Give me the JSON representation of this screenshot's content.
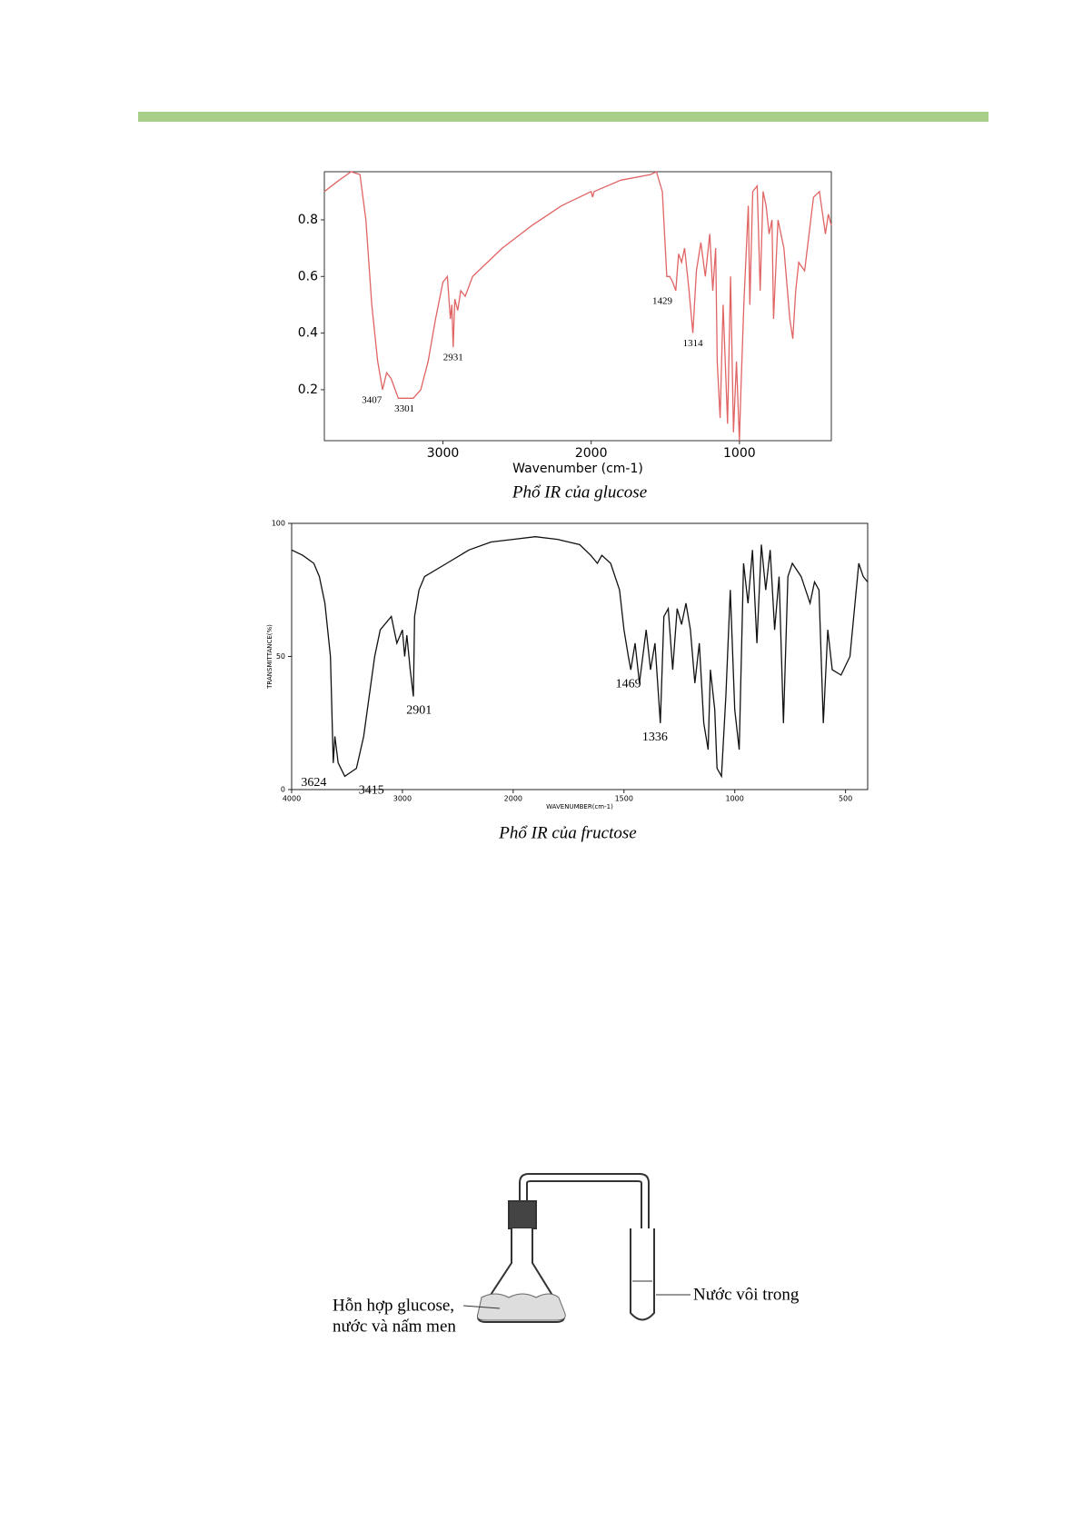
{
  "chart_data": [
    {
      "type": "line",
      "caption": "Phổ IR của glucose",
      "xlabel": "Wavenumber (cm-1)",
      "xlim": [
        3800,
        380
      ],
      "ylim": [
        0.02,
        0.97
      ],
      "xticks": [
        3000,
        2000,
        1000
      ],
      "yticks": [
        0.2,
        0.4,
        0.6,
        0.8
      ],
      "x": [
        3800,
        3700,
        3620,
        3560,
        3520,
        3480,
        3440,
        3407,
        3380,
        3350,
        3301,
        3200,
        3150,
        3100,
        3050,
        3000,
        2970,
        2950,
        2940,
        2931,
        2920,
        2900,
        2880,
        2850,
        2800,
        2600,
        2400,
        2200,
        2000,
        1990,
        1980,
        1800,
        1600,
        1560,
        1520,
        1490,
        1470,
        1450,
        1429,
        1410,
        1390,
        1370,
        1340,
        1314,
        1290,
        1260,
        1230,
        1200,
        1180,
        1160,
        1150,
        1130,
        1110,
        1080,
        1060,
        1040,
        1020,
        1000,
        990,
        970,
        940,
        930,
        910,
        880,
        860,
        840,
        820,
        800,
        780,
        770,
        740,
        700,
        660,
        640,
        620,
        600,
        560,
        500,
        460,
        420,
        400,
        380
      ],
      "series": [
        {
          "name": "glucose",
          "color": "#e06464",
          "values": [
            0.9,
            0.94,
            0.97,
            0.96,
            0.8,
            0.5,
            0.3,
            0.2,
            0.26,
            0.24,
            0.17,
            0.17,
            0.2,
            0.3,
            0.45,
            0.58,
            0.6,
            0.45,
            0.5,
            0.35,
            0.52,
            0.48,
            0.55,
            0.53,
            0.6,
            0.7,
            0.78,
            0.85,
            0.9,
            0.88,
            0.9,
            0.94,
            0.96,
            0.97,
            0.9,
            0.6,
            0.6,
            0.58,
            0.55,
            0.68,
            0.65,
            0.7,
            0.55,
            0.4,
            0.62,
            0.72,
            0.6,
            0.75,
            0.55,
            0.7,
            0.3,
            0.1,
            0.5,
            0.08,
            0.6,
            0.05,
            0.3,
            0.02,
            0.2,
            0.5,
            0.85,
            0.5,
            0.9,
            0.92,
            0.55,
            0.9,
            0.85,
            0.75,
            0.8,
            0.45,
            0.8,
            0.7,
            0.45,
            0.38,
            0.55,
            0.65,
            0.62,
            0.88,
            0.9,
            0.75,
            0.82,
            0.78
          ]
        }
      ],
      "annotations": [
        {
          "text": "3407",
          "x": 3480,
          "y": 0.2
        },
        {
          "text": "3301",
          "x": 3260,
          "y": 0.17
        },
        {
          "text": "2931",
          "x": 2931,
          "y": 0.35
        },
        {
          "text": "1429",
          "x": 1520,
          "y": 0.55
        },
        {
          "text": "1314",
          "x": 1314,
          "y": 0.4
        }
      ]
    },
    {
      "type": "line",
      "caption": "Phổ IR của fructose",
      "xlabel": "WAVENUMBER(cm-1)",
      "ylabel": "TRANSMITTANCE(%)",
      "xlim": [
        4000,
        400
      ],
      "x_scale_break": 2000,
      "x_scale_expand": 2,
      "ylim": [
        0,
        100
      ],
      "xticks": [
        4000,
        3000,
        2000,
        1500,
        1000,
        500
      ],
      "yticks": [
        0,
        50,
        100
      ],
      "x": [
        4000,
        3900,
        3800,
        3750,
        3700,
        3650,
        3624,
        3610,
        3580,
        3520,
        3415,
        3350,
        3300,
        3250,
        3200,
        3100,
        3050,
        3000,
        2980,
        2960,
        2930,
        2901,
        2890,
        2850,
        2800,
        2600,
        2400,
        2200,
        2000,
        1900,
        1800,
        1700,
        1650,
        1620,
        1600,
        1560,
        1520,
        1500,
        1480,
        1469,
        1450,
        1430,
        1400,
        1380,
        1360,
        1336,
        1320,
        1300,
        1280,
        1260,
        1240,
        1220,
        1200,
        1180,
        1160,
        1140,
        1120,
        1110,
        1090,
        1080,
        1060,
        1040,
        1020,
        1000,
        980,
        960,
        940,
        920,
        900,
        880,
        860,
        840,
        820,
        800,
        780,
        760,
        740,
        700,
        660,
        640,
        620,
        600,
        580,
        560,
        520,
        480,
        440,
        420,
        400
      ],
      "series": [
        {
          "name": "fructose",
          "color": "#111111",
          "values": [
            90,
            88,
            85,
            80,
            70,
            50,
            10,
            20,
            10,
            5,
            8,
            20,
            35,
            50,
            60,
            65,
            55,
            60,
            50,
            58,
            45,
            35,
            65,
            75,
            80,
            85,
            90,
            93,
            94,
            95,
            94,
            92,
            88,
            85,
            88,
            85,
            75,
            60,
            50,
            45,
            55,
            40,
            60,
            45,
            55,
            25,
            65,
            68,
            45,
            68,
            62,
            70,
            60,
            40,
            55,
            25,
            15,
            45,
            30,
            8,
            5,
            35,
            75,
            30,
            15,
            85,
            70,
            90,
            55,
            92,
            75,
            90,
            60,
            80,
            25,
            80,
            85,
            80,
            70,
            78,
            75,
            25,
            60,
            45,
            43,
            50,
            85,
            80,
            78
          ]
        }
      ],
      "annotations": [
        {
          "text": "3624",
          "x": 3800,
          "y": 8
        },
        {
          "text": "3415",
          "x": 3280,
          "y": 5
        },
        {
          "text": "2901",
          "x": 2850,
          "y": 35
        },
        {
          "text": "1469",
          "x": 1480,
          "y": 45
        },
        {
          "text": "1336",
          "x": 1360,
          "y": 25
        }
      ]
    }
  ],
  "diagram": {
    "label_mixture": [
      "Hỗn hợp glucose,",
      "nước và nấm men"
    ],
    "label_limewater": "Nước vôi trong"
  }
}
